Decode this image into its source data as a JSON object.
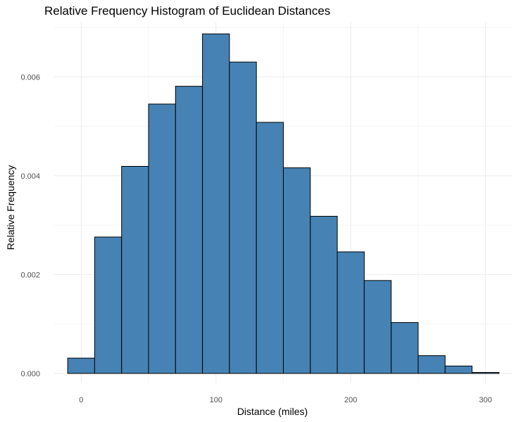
{
  "chart_data": {
    "type": "bar",
    "title": "Relative Frequency Histogram of Euclidean Distances",
    "xlabel": "Distance (miles)",
    "ylabel": "Relative Frequency",
    "bin_width": 20,
    "bins": [
      {
        "start": -10,
        "end": 10,
        "value": 0.00031
      },
      {
        "start": 10,
        "end": 30,
        "value": 0.00276
      },
      {
        "start": 30,
        "end": 50,
        "value": 0.00419
      },
      {
        "start": 50,
        "end": 70,
        "value": 0.00545
      },
      {
        "start": 70,
        "end": 90,
        "value": 0.00581
      },
      {
        "start": 90,
        "end": 110,
        "value": 0.00687
      },
      {
        "start": 110,
        "end": 130,
        "value": 0.0063
      },
      {
        "start": 130,
        "end": 150,
        "value": 0.00508
      },
      {
        "start": 150,
        "end": 170,
        "value": 0.00416
      },
      {
        "start": 170,
        "end": 190,
        "value": 0.00318
      },
      {
        "start": 190,
        "end": 210,
        "value": 0.00246
      },
      {
        "start": 210,
        "end": 230,
        "value": 0.00188
      },
      {
        "start": 230,
        "end": 250,
        "value": 0.00103
      },
      {
        "start": 250,
        "end": 270,
        "value": 0.00036
      },
      {
        "start": 270,
        "end": 290,
        "value": 0.00015
      },
      {
        "start": 290,
        "end": 310,
        "value": 2e-05
      }
    ],
    "xlim": [
      -20,
      320
    ],
    "ylim": [
      -0.0002,
      0.0071
    ],
    "x_ticks": [
      0,
      100,
      200,
      300
    ],
    "x_tick_labels": [
      "0",
      "100",
      "200",
      "300"
    ],
    "y_ticks": [
      0,
      0.002,
      0.004,
      0.006
    ],
    "y_tick_labels": [
      "0.000",
      "0.002",
      "0.004",
      "0.006"
    ],
    "grid": true,
    "legend": "none",
    "colors": {
      "bar_fill": "#4682b4",
      "bar_edge": "#000000",
      "grid_major": "#ebebeb",
      "grid_minor": "#f5f5f5"
    }
  }
}
